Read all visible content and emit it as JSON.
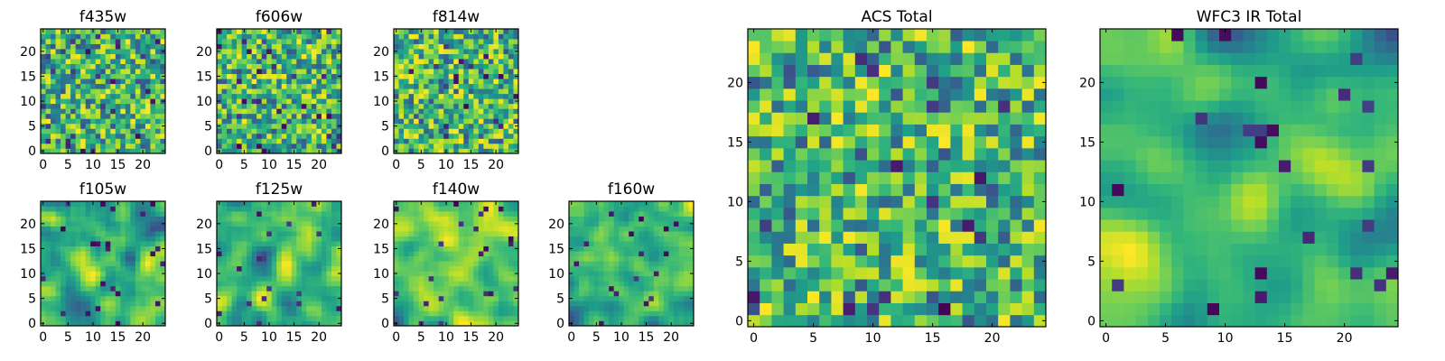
{
  "chart_data": [
    {
      "type": "heatmap",
      "title": "f435w",
      "xticks": [
        "0",
        "5",
        "10",
        "15",
        "20"
      ],
      "yticks": [
        "0",
        "5",
        "10",
        "15",
        "20"
      ],
      "xlim": [
        -0.5,
        24.5
      ],
      "ylim": [
        -0.5,
        24.5
      ],
      "grid": false,
      "colormap": "viridis",
      "smoothness": 0,
      "seed": 11
    },
    {
      "type": "heatmap",
      "title": "f606w",
      "xticks": [
        "0",
        "5",
        "10",
        "15",
        "20"
      ],
      "yticks": [
        "0",
        "5",
        "10",
        "15",
        "20"
      ],
      "xlim": [
        -0.5,
        24.5
      ],
      "ylim": [
        -0.5,
        24.5
      ],
      "grid": false,
      "colormap": "viridis",
      "smoothness": 0,
      "seed": 22
    },
    {
      "type": "heatmap",
      "title": "f814w",
      "xticks": [
        "0",
        "5",
        "10",
        "15",
        "20"
      ],
      "yticks": [
        "0",
        "5",
        "10",
        "15",
        "20"
      ],
      "xlim": [
        -0.5,
        24.5
      ],
      "ylim": [
        -0.5,
        24.5
      ],
      "grid": false,
      "colormap": "viridis",
      "smoothness": 0,
      "seed": 33
    },
    {
      "type": "heatmap",
      "title": "f105w",
      "xticks": [
        "0",
        "5",
        "10",
        "15",
        "20"
      ],
      "yticks": [
        "0",
        "5",
        "10",
        "15",
        "20"
      ],
      "xlim": [
        -0.5,
        24.5
      ],
      "ylim": [
        -0.5,
        24.5
      ],
      "grid": false,
      "colormap": "viridis",
      "smoothness": 2,
      "seed": 44
    },
    {
      "type": "heatmap",
      "title": "f125w",
      "xticks": [
        "0",
        "5",
        "10",
        "15",
        "20"
      ],
      "yticks": [
        "0",
        "5",
        "10",
        "15",
        "20"
      ],
      "xlim": [
        -0.5,
        24.5
      ],
      "ylim": [
        -0.5,
        24.5
      ],
      "grid": false,
      "colormap": "viridis",
      "smoothness": 2,
      "seed": 55
    },
    {
      "type": "heatmap",
      "title": "f140w",
      "xticks": [
        "0",
        "5",
        "10",
        "15",
        "20"
      ],
      "yticks": [
        "0",
        "5",
        "10",
        "15",
        "20"
      ],
      "xlim": [
        -0.5,
        24.5
      ],
      "ylim": [
        -0.5,
        24.5
      ],
      "grid": false,
      "colormap": "viridis",
      "smoothness": 2,
      "seed": 66
    },
    {
      "type": "heatmap",
      "title": "f160w",
      "xticks": [
        "0",
        "5",
        "10",
        "15",
        "20"
      ],
      "yticks": [
        "0",
        "5",
        "10",
        "15",
        "20"
      ],
      "xlim": [
        -0.5,
        24.5
      ],
      "ylim": [
        -0.5,
        24.5
      ],
      "grid": false,
      "colormap": "viridis",
      "smoothness": 2,
      "seed": 77
    },
    {
      "type": "heatmap",
      "title": "ACS Total",
      "xticks": [
        "0",
        "5",
        "10",
        "15",
        "20"
      ],
      "yticks": [
        "0",
        "5",
        "10",
        "15",
        "20"
      ],
      "xlim": [
        -0.5,
        24.5
      ],
      "ylim": [
        -0.5,
        24.5
      ],
      "grid": false,
      "colormap": "viridis",
      "smoothness": 0,
      "seed": 88
    },
    {
      "type": "heatmap",
      "title": "WFC3 IR Total",
      "xticks": [
        "0",
        "5",
        "10",
        "15",
        "20"
      ],
      "yticks": [
        "0",
        "5",
        "10",
        "15",
        "20"
      ],
      "xlim": [
        -0.5,
        24.5
      ],
      "ylim": [
        -0.5,
        24.5
      ],
      "grid": false,
      "colormap": "viridis",
      "smoothness": 3,
      "seed": 99
    }
  ]
}
